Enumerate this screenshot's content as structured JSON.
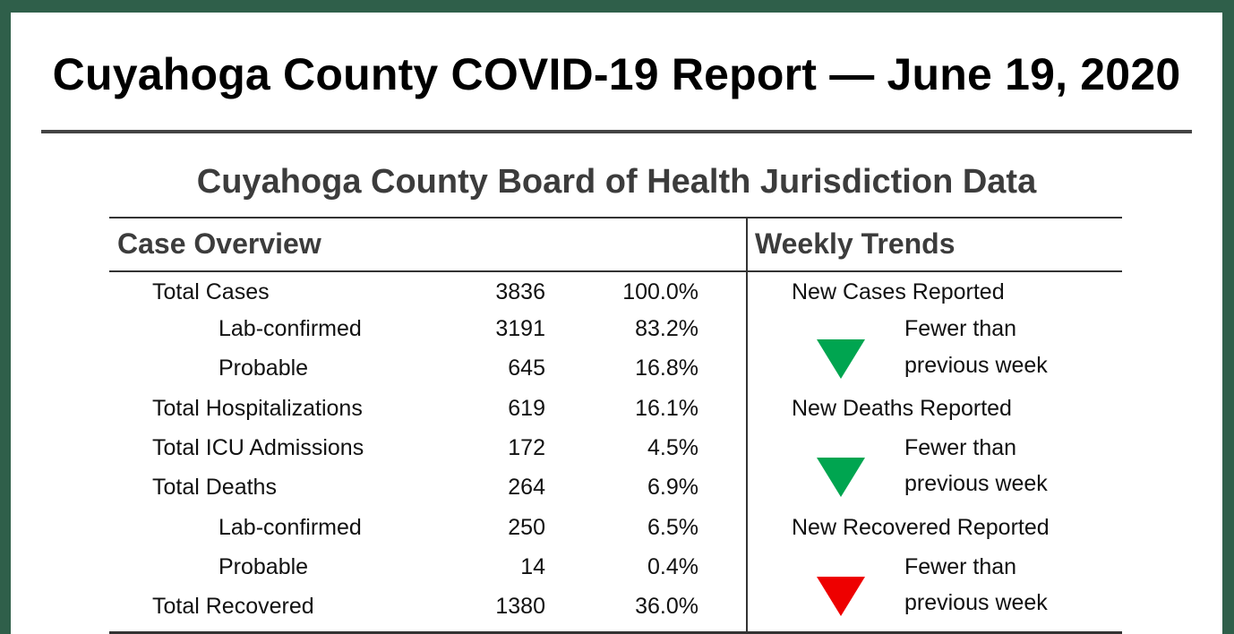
{
  "report": {
    "title": "Cuyahoga County COVID-19 Report — June 19, 2020",
    "section_title": "Cuyahoga County Board of Health Jurisdiction Data"
  },
  "table": {
    "overview_header": "Case Overview",
    "trends_header": "Weekly Trends",
    "rows": [
      {
        "label": "Total Cases",
        "count": "3836",
        "pct": "100.0%"
      },
      {
        "label": "Lab-confirmed",
        "count": "3191",
        "pct": "83.2%"
      },
      {
        "label": "Probable",
        "count": "645",
        "pct": "16.8%"
      },
      {
        "label": "Total Hospitalizations",
        "count": "619",
        "pct": "16.1%"
      },
      {
        "label": "Total ICU Admissions",
        "count": "172",
        "pct": "4.5%"
      },
      {
        "label": "Total Deaths",
        "count": "264",
        "pct": "6.9%"
      },
      {
        "label": "Lab-confirmed",
        "count": "250",
        "pct": "6.5%"
      },
      {
        "label": "Probable",
        "count": "14",
        "pct": "0.4%"
      },
      {
        "label": "Total Recovered",
        "count": "1380",
        "pct": "36.0%"
      }
    ],
    "trends": [
      {
        "label": "New Cases Reported",
        "line1": "Fewer than",
        "line2": "previous week",
        "direction": "down",
        "color": "#00a550"
      },
      {
        "label": "New Deaths Reported",
        "line1": "Fewer than",
        "line2": "previous week",
        "direction": "down",
        "color": "#00a550"
      },
      {
        "label": "New Recovered Reported",
        "line1": "Fewer than",
        "line2": "previous week",
        "direction": "down",
        "color": "#ee0000"
      }
    ]
  }
}
